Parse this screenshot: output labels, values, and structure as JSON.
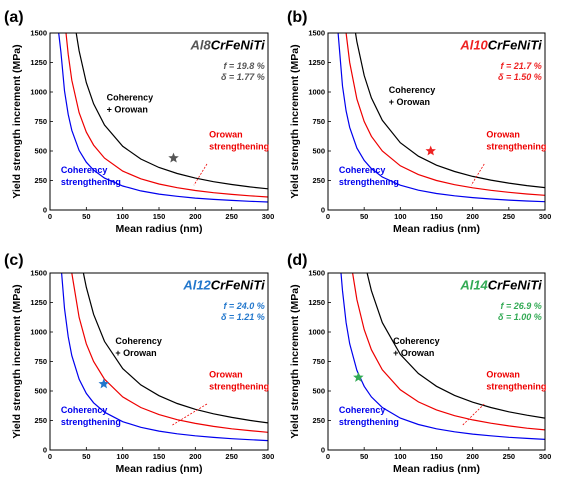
{
  "chart_data": [
    {
      "type": "line",
      "panel": "(a)",
      "title_prefix": "Al8",
      "title_suffix": "CrFeNiTi",
      "title_color": "#555555",
      "params": [
        "f = 19.8 %",
        "δ = 1.77 %"
      ],
      "params_color": "#555555",
      "xlabel": "Mean radius (nm)",
      "ylabel": "Yield strength increment (MPa)",
      "xlim": [
        0,
        300
      ],
      "ylim": [
        0,
        1500
      ],
      "xticks": [
        0,
        50,
        100,
        150,
        200,
        250,
        300
      ],
      "yticks": [
        0,
        250,
        500,
        750,
        1000,
        1250,
        1500
      ],
      "grid": false,
      "series": [
        {
          "color": "#0000ee",
          "label_lines": [
            "Coherency",
            "strengthening"
          ],
          "x": [
            12,
            15,
            20,
            25,
            30,
            40,
            50,
            60,
            75,
            100,
            125,
            150,
            175,
            200,
            225,
            250,
            275,
            300
          ],
          "y": [
            1500,
            1340,
            1010,
            810,
            675,
            505,
            405,
            338,
            270,
            203,
            162,
            135,
            116,
            101,
            90,
            81,
            74,
            68
          ]
        },
        {
          "color": "#ee0000",
          "label_lines": [
            "Orowan",
            "strengthening"
          ],
          "x": [
            22,
            25,
            30,
            40,
            50,
            60,
            75,
            100,
            125,
            150,
            175,
            200,
            225,
            250,
            275,
            300
          ],
          "y": [
            1500,
            1320,
            1100,
            825,
            660,
            550,
            440,
            330,
            264,
            220,
            189,
            165,
            147,
            132,
            120,
            110
          ]
        },
        {
          "color": "#000000",
          "label_lines": [
            "Coherency",
            "+ Orowan"
          ],
          "x": [
            36,
            40,
            50,
            60,
            75,
            100,
            125,
            150,
            175,
            200,
            225,
            250,
            275,
            300
          ],
          "y": [
            1500,
            1350,
            1080,
            900,
            720,
            540,
            432,
            360,
            309,
            270,
            240,
            216,
            196,
            180
          ]
        }
      ],
      "marker": {
        "x": 170,
        "y": 440,
        "color": "#555555"
      }
    },
    {
      "type": "line",
      "panel": "(b)",
      "title_prefix": "Al10",
      "title_suffix": "CrFeNiTi",
      "title_color": "#ee2222",
      "params": [
        "f = 21.7 %",
        "δ = 1.50 %"
      ],
      "params_color": "#ee2222",
      "xlabel": "Mean radius (nm)",
      "ylabel": "Yield strength increment (MPa)",
      "xlim": [
        0,
        300
      ],
      "ylim": [
        0,
        1500
      ],
      "xticks": [
        0,
        50,
        100,
        150,
        200,
        250,
        300
      ],
      "yticks": [
        0,
        250,
        500,
        750,
        1000,
        1250,
        1500
      ],
      "grid": false,
      "series": [
        {
          "color": "#0000ee",
          "label_lines": [
            "Coherency",
            "strengthening"
          ],
          "x": [
            14,
            20,
            25,
            30,
            40,
            50,
            60,
            75,
            100,
            125,
            150,
            175,
            200,
            225,
            250,
            275,
            300
          ],
          "y": [
            1500,
            1050,
            840,
            700,
            525,
            420,
            350,
            280,
            210,
            168,
            140,
            120,
            105,
            93,
            84,
            76,
            70
          ]
        },
        {
          "color": "#ee0000",
          "label_lines": [
            "Orowan",
            "strengthening"
          ],
          "x": [
            25,
            30,
            40,
            50,
            60,
            75,
            100,
            125,
            150,
            175,
            200,
            225,
            250,
            275,
            300
          ],
          "y": [
            1500,
            1250,
            940,
            750,
            625,
            500,
            375,
            300,
            250,
            214,
            188,
            167,
            150,
            136,
            125
          ]
        },
        {
          "color": "#000000",
          "label_lines": [
            "Coherency",
            "+ Orowan"
          ],
          "x": [
            38,
            40,
            50,
            60,
            75,
            100,
            125,
            150,
            175,
            200,
            225,
            250,
            275,
            300
          ],
          "y": [
            1500,
            1425,
            1140,
            950,
            760,
            570,
            456,
            380,
            326,
            285,
            253,
            228,
            207,
            190
          ]
        }
      ],
      "marker": {
        "x": 142,
        "y": 500,
        "color": "#ee2222"
      }
    },
    {
      "type": "line",
      "panel": "(c)",
      "title_prefix": "Al12",
      "title_suffix": "CrFeNiTi",
      "title_color": "#2277cc",
      "params": [
        "f = 24.0 %",
        "δ = 1.21 %"
      ],
      "params_color": "#2277cc",
      "xlabel": "Mean radius (nm)",
      "ylabel": "Yield strength increment (MPa)",
      "xlim": [
        0,
        300
      ],
      "ylim": [
        0,
        1500
      ],
      "xticks": [
        0,
        50,
        100,
        150,
        200,
        250,
        300
      ],
      "yticks": [
        0,
        250,
        500,
        750,
        1000,
        1250,
        1500
      ],
      "grid": false,
      "series": [
        {
          "color": "#0000ee",
          "label_lines": [
            "Coherency",
            "strengthening"
          ],
          "x": [
            16,
            20,
            25,
            30,
            40,
            50,
            60,
            75,
            100,
            125,
            150,
            175,
            200,
            225,
            250,
            275,
            300
          ],
          "y": [
            1500,
            1200,
            960,
            800,
            600,
            480,
            400,
            320,
            240,
            192,
            160,
            137,
            120,
            107,
            96,
            87,
            80
          ]
        },
        {
          "color": "#ee0000",
          "label_lines": [
            "Orowan",
            "strengthening"
          ],
          "x": [
            30,
            40,
            50,
            60,
            75,
            100,
            125,
            150,
            175,
            200,
            225,
            250,
            275,
            300
          ],
          "y": [
            1500,
            1125,
            900,
            750,
            600,
            450,
            360,
            300,
            257,
            225,
            200,
            180,
            164,
            150
          ]
        },
        {
          "color": "#000000",
          "label_lines": [
            "Coherency",
            "+ Orowan"
          ],
          "x": [
            46,
            50,
            60,
            75,
            100,
            125,
            150,
            175,
            200,
            225,
            250,
            275,
            300
          ],
          "y": [
            1500,
            1380,
            1150,
            920,
            690,
            552,
            460,
            394,
            345,
            307,
            276,
            251,
            230
          ]
        }
      ],
      "marker": {
        "x": 74,
        "y": 560,
        "color": "#2277cc"
      }
    },
    {
      "type": "line",
      "panel": "(d)",
      "title_prefix": "Al14",
      "title_suffix": "CrFeNiTi",
      "title_color": "#33aa55",
      "params": [
        "f = 26.9 %",
        "δ = 1.00 %"
      ],
      "params_color": "#33aa55",
      "xlabel": "Mean radius (nm)",
      "ylabel": "Yield strength increment (MPa)",
      "xlim": [
        0,
        300
      ],
      "ylim": [
        0,
        1500
      ],
      "xticks": [
        0,
        50,
        100,
        150,
        200,
        250,
        300
      ],
      "yticks": [
        0,
        250,
        500,
        750,
        1000,
        1250,
        1500
      ],
      "grid": false,
      "series": [
        {
          "color": "#0000ee",
          "label_lines": [
            "Coherency",
            "strengthening"
          ],
          "x": [
            18,
            20,
            25,
            30,
            40,
            50,
            60,
            75,
            100,
            125,
            150,
            175,
            200,
            225,
            250,
            275,
            300
          ],
          "y": [
            1500,
            1350,
            1080,
            900,
            675,
            540,
            450,
            360,
            270,
            216,
            180,
            154,
            135,
            120,
            108,
            98,
            90
          ]
        },
        {
          "color": "#ee0000",
          "label_lines": [
            "Orowan",
            "strengthening"
          ],
          "x": [
            34,
            40,
            50,
            60,
            75,
            100,
            125,
            150,
            175,
            200,
            225,
            250,
            275,
            300
          ],
          "y": [
            1500,
            1275,
            1020,
            850,
            680,
            510,
            408,
            340,
            291,
            255,
            227,
            204,
            185,
            170
          ]
        },
        {
          "color": "#000000",
          "label_lines": [
            "Coherency",
            "+ Orowan"
          ],
          "x": [
            54,
            60,
            75,
            100,
            125,
            150,
            175,
            200,
            225,
            250,
            275,
            300
          ],
          "y": [
            1500,
            1350,
            1080,
            810,
            648,
            540,
            463,
            405,
            360,
            324,
            295,
            270
          ]
        }
      ],
      "marker": {
        "x": 42,
        "y": 615,
        "color": "#33aa55"
      }
    }
  ]
}
